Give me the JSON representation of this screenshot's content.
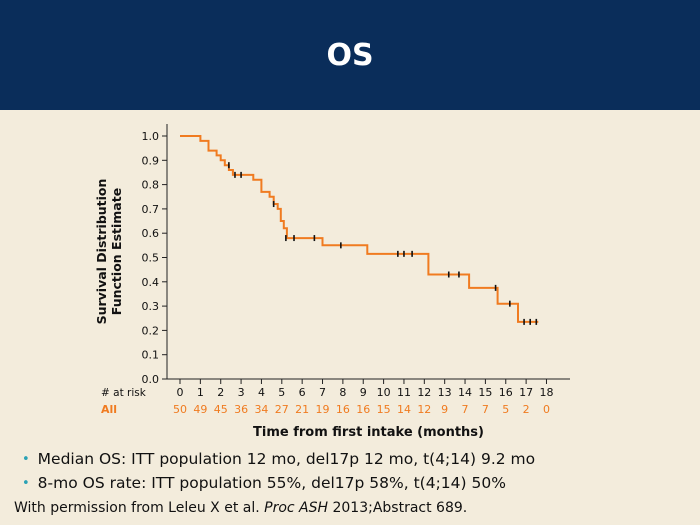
{
  "header": {
    "title": "OS"
  },
  "chart_data": {
    "type": "line",
    "xlabel": "Time from first intake (months)",
    "ylabel_lines": [
      "Survival Distribution",
      "Function Estimate"
    ],
    "xlim": [
      0,
      18
    ],
    "ylim": [
      0,
      1
    ],
    "x_ticks": [
      "0",
      "1",
      "2",
      "3",
      "4",
      "5",
      "6",
      "7",
      "8",
      "9",
      "10",
      "11",
      "12",
      "13",
      "14",
      "15",
      "16",
      "17",
      "18"
    ],
    "y_ticks": [
      "0.0",
      "0.1",
      "0.2",
      "0.3",
      "0.4",
      "0.5",
      "0.6",
      "0.7",
      "0.8",
      "0.9",
      "1.0"
    ],
    "series": [
      {
        "color": "#f07b20",
        "step_x": [
          0,
          0.8,
          1.0,
          1.4,
          1.8,
          2.0,
          2.2,
          2.4,
          2.6,
          3.6,
          4.0,
          4.4,
          4.6,
          4.8,
          4.95,
          5.1,
          5.25,
          5.4,
          7.0,
          9.2,
          12.0,
          12.2,
          14.2,
          15.6,
          16.4,
          16.6,
          17.6
        ],
        "step_y": [
          1.0,
          1.0,
          0.98,
          0.94,
          0.92,
          0.9,
          0.88,
          0.86,
          0.84,
          0.82,
          0.77,
          0.75,
          0.72,
          0.7,
          0.65,
          0.62,
          0.58,
          0.58,
          0.55,
          0.515,
          0.515,
          0.43,
          0.375,
          0.31,
          0.31,
          0.235,
          0.235
        ],
        "censor_x": [
          2.4,
          2.7,
          3.0,
          4.6,
          5.2,
          5.6,
          6.6,
          7.9,
          10.7,
          11.0,
          11.4,
          13.2,
          13.7,
          15.5,
          16.2,
          16.9,
          17.2,
          17.5
        ],
        "censor_y": [
          0.88,
          0.84,
          0.84,
          0.72,
          0.58,
          0.58,
          0.58,
          0.55,
          0.515,
          0.515,
          0.515,
          0.43,
          0.43,
          0.375,
          0.31,
          0.235,
          0.235,
          0.235
        ]
      }
    ],
    "at_risk": {
      "title": "# at risk",
      "label": "All",
      "values": [
        "50",
        "49",
        "45",
        "36",
        "34",
        "27",
        "21",
        "19",
        "16",
        "16",
        "15",
        "14",
        "12",
        "9",
        "7",
        "7",
        "5",
        "2",
        "0"
      ]
    }
  },
  "bullets": [
    "Median OS: ITT population 12 mo, del17p 12 mo, t(4;14) 9.2 mo",
    "8-mo OS rate: ITT population 55%, del17p 58%, t(4;14) 50%"
  ],
  "permission": {
    "prefix": "With permission from Leleu X et al. ",
    "journal": "Proc ASH",
    "suffix": " 2013;Abstract 689."
  },
  "colors": {
    "header_bg": "#0a2d5a",
    "accent": "#f07b20",
    "background": "#f3ecdc"
  }
}
